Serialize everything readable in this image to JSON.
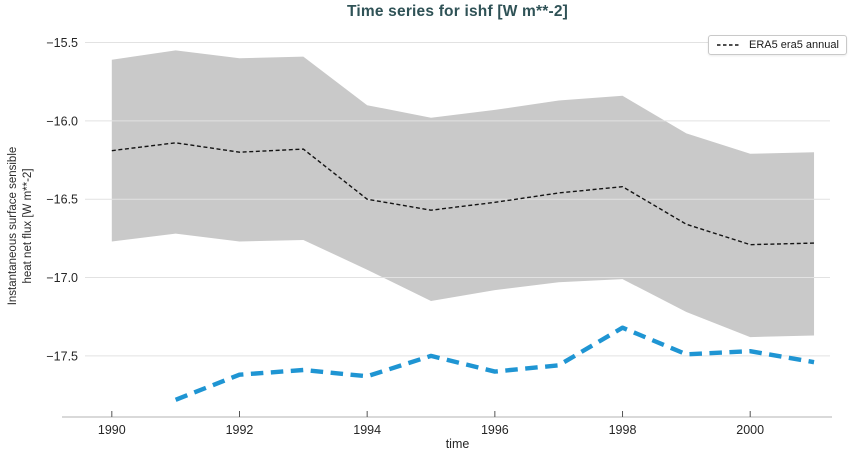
{
  "title": "Time series for ishf [W m**-2]",
  "legend": {
    "label": "ERA5 era5 annual"
  },
  "axes": {
    "xlabel": "time",
    "ylabel": "Instantaneous surface sensible\nheat net flux [W m**-2]"
  },
  "colors": {
    "title": "#2f5256",
    "band": "#c9c9c9",
    "annual_line": "#141414",
    "blue_line": "#1f95d3",
    "grid": "#e2e2e2",
    "spine": "#c2c2c2",
    "tick": "#555555",
    "text": "#262626"
  },
  "chart_data": {
    "type": "line",
    "title": "Time series for ishf [W m**-2]",
    "xlabel": "time",
    "ylabel": "Instantaneous surface sensible heat net flux [W m**-2]",
    "xlim": [
      1989.58,
      2001.25
    ],
    "ylim": [
      -17.89,
      -15.42
    ],
    "grid": true,
    "legend_position": "upper right",
    "xticks": [
      1990,
      1992,
      1994,
      1996,
      1998,
      2000
    ],
    "xtick_labels": [
      "1990",
      "1992",
      "1994",
      "1996",
      "1998",
      "2000"
    ],
    "yticks": [
      -15.5,
      -16.0,
      -16.5,
      -17.0,
      -17.5
    ],
    "ytick_labels": [
      "−15.5",
      "−16.0",
      "−16.5",
      "−17.0",
      "−17.5"
    ],
    "series": [
      {
        "id": "era5-annual-uncertainty-band",
        "kind": "band",
        "color": "#c9c9c9",
        "x": [
          1990,
          1991,
          1992,
          1993,
          1994,
          1995,
          1996,
          1997,
          1998,
          1999,
          2000,
          2001
        ],
        "upper": [
          -15.61,
          -15.55,
          -15.6,
          -15.59,
          -15.9,
          -15.98,
          -15.93,
          -15.87,
          -15.84,
          -16.08,
          -16.21,
          -16.2
        ],
        "lower": [
          -16.77,
          -16.72,
          -16.77,
          -16.76,
          -16.95,
          -17.15,
          -17.08,
          -17.03,
          -17.01,
          -17.22,
          -17.38,
          -17.37
        ]
      },
      {
        "id": "era5-annual-line",
        "name": "ERA5 era5 annual",
        "kind": "line",
        "color": "#141414",
        "width": 1.4,
        "dash": "4 2.6",
        "x": [
          1990,
          1991,
          1992,
          1993,
          1994,
          1995,
          1996,
          1997,
          1998,
          1999,
          2000,
          2001
        ],
        "y": [
          -16.19,
          -16.14,
          -16.2,
          -16.18,
          -16.5,
          -16.57,
          -16.52,
          -16.46,
          -16.42,
          -16.66,
          -16.79,
          -16.78
        ]
      },
      {
        "id": "blue-dashed-series",
        "kind": "line",
        "color": "#1f95d3",
        "width": 4.4,
        "dash": "12.5 7.5",
        "x": [
          1991,
          1992,
          1993,
          1994,
          1995,
          1996,
          1997,
          1998,
          1999,
          2000,
          2001
        ],
        "y": [
          -17.78,
          -17.62,
          -17.59,
          -17.63,
          -17.5,
          -17.6,
          -17.56,
          -17.32,
          -17.49,
          -17.47,
          -17.54
        ]
      }
    ]
  }
}
